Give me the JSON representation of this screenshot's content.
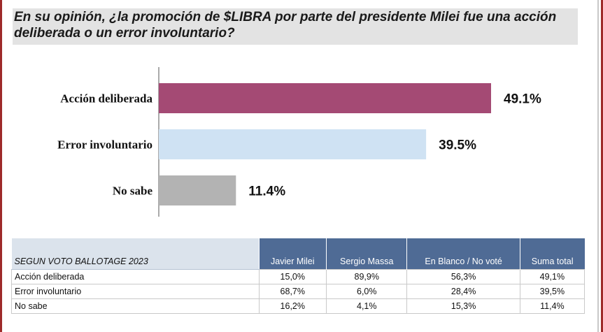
{
  "question": "En su opinión, ¿la promoción de $LIBRA por parte del presidente Milei fue una acción deliberada o un error involuntario?",
  "colors": {
    "bar_1": "#a44a74",
    "bar_2": "#cfe2f3",
    "bar_3": "#b3b3b3",
    "table_header": "#4f6b95",
    "table_section": "#dbe3ec"
  },
  "chart_data": {
    "type": "bar",
    "orientation": "horizontal",
    "categories": [
      "Acción deliberada",
      "Error involuntario",
      "No sabe"
    ],
    "values": [
      49.1,
      39.5,
      11.4
    ],
    "value_labels": [
      "49.1%",
      "39.5%",
      "11.4%"
    ],
    "xlim": [
      0,
      55
    ],
    "grid": false,
    "legend": "none"
  },
  "table": {
    "section_label": "SEGUN VOTO BALLOTAGE 2023",
    "columns": [
      "Javier Milei",
      "Sergio Massa",
      "En Blanco / No voté",
      "Suma total"
    ],
    "rows": [
      {
        "label": "Acción deliberada",
        "values": [
          "15,0%",
          "89,9%",
          "56,3%",
          "49,1%"
        ]
      },
      {
        "label": "Error involuntario",
        "values": [
          "68,7%",
          "6,0%",
          "28,4%",
          "39,5%"
        ]
      },
      {
        "label": "No sabe",
        "values": [
          "16,2%",
          "4,1%",
          "15,3%",
          "11,4%"
        ]
      }
    ]
  }
}
